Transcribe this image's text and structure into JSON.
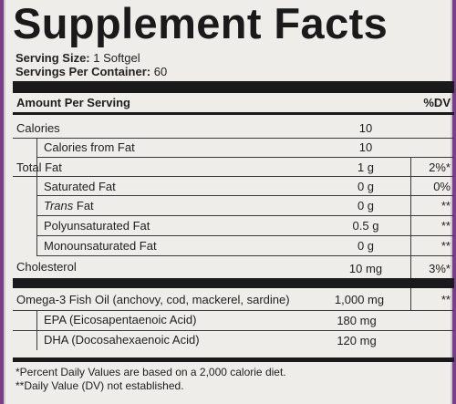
{
  "title": "Supplement Facts",
  "serving": {
    "size_label": "Serving Size:",
    "size_value": "1 Softgel",
    "servings_label": "Servings Per Container:",
    "servings_value": "60"
  },
  "header": {
    "amount_per_serving": "Amount Per Serving",
    "dv": "%DV"
  },
  "rows": [
    {
      "name_prefix": "",
      "name_italic": "",
      "name_suffix": "Calories",
      "amount": "10",
      "dv": ""
    },
    {
      "name_prefix": "",
      "name_italic": "",
      "name_suffix": "Calories from Fat",
      "amount": "10",
      "dv": ""
    },
    {
      "name_prefix": "",
      "name_italic": "",
      "name_suffix": "Total Fat",
      "amount": "1 g",
      "dv": "2%*"
    },
    {
      "name_prefix": "",
      "name_italic": "",
      "name_suffix": "Saturated Fat",
      "amount": "0 g",
      "dv": "0%"
    },
    {
      "name_prefix": "",
      "name_italic": "Trans",
      "name_suffix": " Fat",
      "amount": "0 g",
      "dv": "**"
    },
    {
      "name_prefix": "",
      "name_italic": "",
      "name_suffix": "Polyunsaturated Fat",
      "amount": "0.5 g",
      "dv": "**"
    },
    {
      "name_prefix": "",
      "name_italic": "",
      "name_suffix": "Monounsaturated Fat",
      "amount": "0 g",
      "dv": "**"
    },
    {
      "name_prefix": "",
      "name_italic": "",
      "name_suffix": "Cholesterol",
      "amount": "10 mg",
      "dv": "3%*"
    },
    {
      "name_prefix": "",
      "name_italic": "",
      "name_suffix": "Omega-3 Fish Oil (anchovy, cod, mackerel, sardine)",
      "amount": "1,000 mg",
      "dv": "**"
    },
    {
      "name_prefix": "",
      "name_italic": "",
      "name_suffix": "EPA (Eicosapentaenoic Acid)",
      "amount": "180 mg",
      "dv": ""
    },
    {
      "name_prefix": "",
      "name_italic": "",
      "name_suffix": "DHA (Docosahexaenoic Acid)",
      "amount": "120 mg",
      "dv": ""
    }
  ],
  "footnotes": [
    "*Percent Daily Values are based on a 2,000 calorie diet.",
    "**Daily Value (DV) not established."
  ]
}
